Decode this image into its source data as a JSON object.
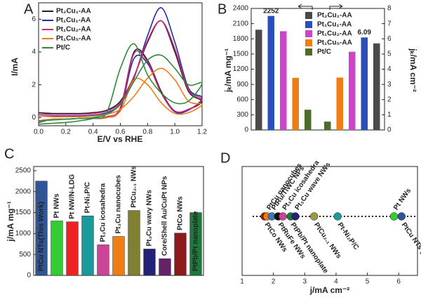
{
  "chart_data": [
    {
      "type": "line",
      "panel": "A",
      "xlabel": "E/V vs RHE",
      "ylabel": "I/mA",
      "x": [
        0,
        0.1,
        0.2,
        0.3,
        0.4,
        0.5,
        0.6,
        0.7,
        0.8,
        0.9,
        1.0,
        1.1,
        1.2,
        1.1,
        1.0,
        0.9,
        0.8,
        0.7,
        0.6,
        0.5,
        0.4,
        0.3,
        0.2,
        0.1,
        0
      ],
      "series": [
        {
          "name": "Pt₂Cu₁-AA",
          "color": "#222222",
          "values": [
            0.3,
            0.25,
            0.25,
            0.25,
            0.3,
            0.45,
            1.0,
            2.5,
            4.6,
            5.9,
            4.0,
            1.6,
            1.0,
            0.5,
            0.4,
            1.6,
            3.5,
            4.0,
            0.6,
            0.05,
            -0.05,
            -0.05,
            -0.1,
            -0.1,
            -0.25
          ]
        },
        {
          "name": "Pt₁Cu₁-AA",
          "color": "#1f2fa8",
          "values": [
            0.1,
            0.1,
            0.1,
            0.1,
            0.15,
            0.3,
            0.8,
            2.4,
            5.0,
            6.7,
            4.6,
            1.8,
            1.2,
            0.45,
            0.35,
            1.5,
            3.3,
            3.6,
            0.5,
            0.0,
            -0.05,
            -0.05,
            -0.1,
            -0.1,
            -0.3
          ]
        },
        {
          "name": "Pt₁Cu₂-AA",
          "color": "#d4247a",
          "values": [
            0.2,
            0.2,
            0.2,
            0.2,
            0.25,
            0.4,
            0.9,
            2.5,
            4.7,
            5.9,
            4.2,
            1.7,
            1.1,
            0.5,
            0.4,
            1.5,
            3.4,
            3.9,
            0.6,
            0.05,
            -0.05,
            -0.05,
            -0.1,
            -0.1,
            -0.2
          ]
        },
        {
          "name": "Pt₁Cu₅-AA",
          "color": "#f07d14",
          "values": [
            0.1,
            0.05,
            0.05,
            0.05,
            0.1,
            0.2,
            0.5,
            1.3,
            2.4,
            3.0,
            2.3,
            1.0,
            0.8,
            0.3,
            0.25,
            0.9,
            2.0,
            2.3,
            0.4,
            0.0,
            -0.05,
            -0.05,
            -0.1,
            -0.1,
            -0.25
          ]
        },
        {
          "name": "Pt/C",
          "color": "#2e8b3a",
          "values": [
            -0.2,
            -0.15,
            -0.1,
            -0.05,
            0.0,
            0.2,
            0.8,
            2.2,
            3.5,
            3.8,
            3.0,
            2.0,
            2.1,
            1.0,
            0.9,
            1.5,
            2.6,
            4.5,
            3.0,
            0.3,
            -0.05,
            -0.2,
            -0.3,
            -0.35,
            -0.4
          ]
        }
      ],
      "xlim": [
        0,
        1.2
      ],
      "xticks": [
        {
          "value": 0,
          "label": "0.0"
        },
        {
          "value": 0.2,
          "label": "0.2"
        },
        {
          "value": 0.4,
          "label": "0.4"
        },
        {
          "value": 0.6,
          "label": "0.6"
        },
        {
          "value": 0.8,
          "label": "0.8"
        },
        {
          "value": 1.0,
          "label": "1.0"
        },
        {
          "value": 1.2,
          "label": "1.2"
        }
      ],
      "ylim": [
        -0.5,
        7
      ],
      "yticks": [
        0,
        2,
        4,
        6
      ]
    },
    {
      "type": "bar",
      "panel": "B",
      "ylabel": "jₖ/mA mg⁻¹",
      "y2label": "jₖ/mA cm⁻²",
      "series": [
        {
          "name": "Pt₂Cu₁-AA",
          "color": "#4a4a4a",
          "values": [
            1980,
            5.7
          ]
        },
        {
          "name": "Pt₁Cu₁-AA",
          "color": "#2b4fb8",
          "values": [
            2252,
            6.09
          ],
          "show_labels": true
        },
        {
          "name": "Pt₁Cu₂-AA",
          "color": "#cc44cc",
          "values": [
            1950,
            5.15
          ]
        },
        {
          "name": "Pt₁Cu₅-AA",
          "color": "#f07d14",
          "values": [
            1030,
            3.45
          ]
        },
        {
          "name": "Pt/C",
          "color": "#4d6b2a",
          "values": [
            400,
            0.55
          ]
        }
      ],
      "axes": [
        "y",
        "y2"
      ],
      "y2_order": "reversed",
      "ylim": [
        0,
        2400
      ],
      "yticks": [
        0,
        300,
        600,
        900,
        1200,
        1500,
        1800,
        2100,
        2400
      ],
      "y2lim": [
        0,
        8
      ],
      "y2ticks": [
        0,
        1,
        2,
        3,
        4,
        5,
        6,
        7,
        8
      ]
    },
    {
      "type": "bar",
      "panel": "C",
      "ylabel": "j/mA mg⁻¹",
      "categories": [
        "PtCu NTs(This Work)",
        "Pt NWs",
        "Pt NW/N-LDG",
        "Pt-Ni₂P/C",
        "Pt₃Cu icosahedra",
        "Pt₃Cu nanocubes",
        "PtCu₂.₁ NWs",
        "Pt₃Cu wavy NWs",
        "Core/Shell Au/CuPt NPs",
        "PtCo NWs",
        "PtPb/Pt nanoplate"
      ],
      "values": [
        2252,
        1300,
        1280,
        1420,
        730,
        930,
        1550,
        630,
        400,
        1010,
        1500
      ],
      "colors": [
        "#2f5597",
        "#33cc33",
        "#ee2222",
        "#1a9a9a",
        "#cc4499",
        "#f07d14",
        "#808033",
        "#222277",
        "#662266",
        "#8b1a1a",
        "#1b7a3a"
      ],
      "label_inside": [
        true,
        false,
        false,
        false,
        false,
        false,
        false,
        false,
        false,
        false,
        true
      ],
      "ylim": [
        0,
        2600
      ],
      "yticks": [
        0,
        500,
        1000,
        1500,
        2000,
        2500
      ]
    },
    {
      "type": "scatter",
      "panel": "D",
      "xlabel": "j/mA cm⁻²",
      "names": [
        "PtCo NWs",
        "PtCu nanocubes",
        "PtRu/TiWC NPs",
        "PtRuFe NWs",
        "Pt₃Cu icosahedra",
        "PtPb/Pt nanoplate",
        "Pt₃Cu wave NWs",
        "PtCu₂.₁ NWs",
        "Pt-Ni₂P/C",
        "Pt NWs",
        "PtCu NTs (This Work)"
      ],
      "x": [
        1.72,
        1.8,
        1.95,
        2.15,
        2.3,
        2.55,
        2.7,
        3.3,
        4.05,
        5.85,
        6.09
      ],
      "colors": [
        "#8b1a1a",
        "#f07d14",
        "#3a7ab8",
        "#111111",
        "#cc4499",
        "#1b7a3a",
        "#222277",
        "#999944",
        "#1a9a9a",
        "#33cc33",
        "#2f5597"
      ],
      "label_above": [
        false,
        true,
        true,
        false,
        true,
        false,
        true,
        false,
        false,
        true,
        false
      ],
      "xlim": [
        1,
        6.6
      ],
      "xticks": [
        1,
        2,
        3,
        4,
        5,
        6
      ]
    }
  ]
}
